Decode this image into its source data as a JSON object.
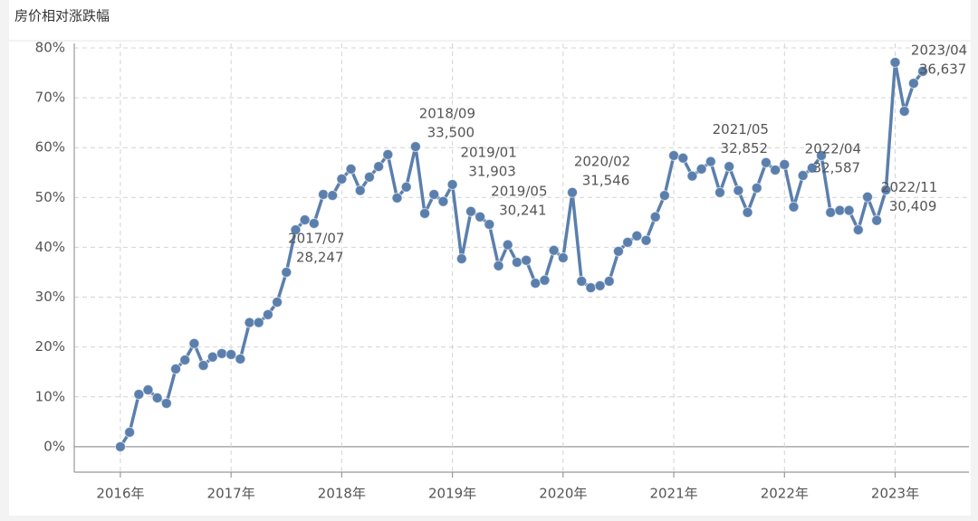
{
  "chart_data": {
    "type": "line",
    "title": "房价相对涨跌幅",
    "x": [
      "2016/01",
      "2016/02",
      "2016/03",
      "2016/04",
      "2016/05",
      "2016/06",
      "2016/07",
      "2016/08",
      "2016/09",
      "2016/10",
      "2016/11",
      "2016/12",
      "2017/01",
      "2017/02",
      "2017/03",
      "2017/04",
      "2017/05",
      "2017/06",
      "2017/07",
      "2017/08",
      "2017/09",
      "2017/10",
      "2017/11",
      "2017/12",
      "2018/01",
      "2018/02",
      "2018/03",
      "2018/04",
      "2018/05",
      "2018/06",
      "2018/07",
      "2018/08",
      "2018/09",
      "2018/10",
      "2018/11",
      "2018/12",
      "2019/01",
      "2019/02",
      "2019/03",
      "2019/04",
      "2019/05",
      "2019/06",
      "2019/07",
      "2019/08",
      "2019/09",
      "2019/10",
      "2019/11",
      "2019/12",
      "2020/01",
      "2020/02",
      "2020/03",
      "2020/04",
      "2020/05",
      "2020/06",
      "2020/07",
      "2020/08",
      "2020/09",
      "2020/10",
      "2020/11",
      "2020/12",
      "2021/01",
      "2021/02",
      "2021/03",
      "2021/04",
      "2021/05",
      "2021/06",
      "2021/07",
      "2021/08",
      "2021/09",
      "2021/10",
      "2021/11",
      "2021/12",
      "2022/01",
      "2022/02",
      "2022/03",
      "2022/04",
      "2022/05",
      "2022/06",
      "2022/07",
      "2022/08",
      "2022/09",
      "2022/10",
      "2022/11",
      "2022/12",
      "2023/01",
      "2023/02",
      "2023/03",
      "2023/04"
    ],
    "series": [
      {
        "name": "房价相对涨跌幅",
        "color": "#5b7fad",
        "values": [
          0,
          2.9,
          10.5,
          11.4,
          9.8,
          8.7,
          15.6,
          17.4,
          20.7,
          16.3,
          18.0,
          18.7,
          18.5,
          17.6,
          24.9,
          24.9,
          26.5,
          29.0,
          35.0,
          43.5,
          45.5,
          44.8,
          50.6,
          50.4,
          53.7,
          55.7,
          51.4,
          54.1,
          56.2,
          58.6,
          49.9,
          52.1,
          60.2,
          46.8,
          50.6,
          49.2,
          52.6,
          37.7,
          47.2,
          46.1,
          44.6,
          36.3,
          40.5,
          37.0,
          37.4,
          32.8,
          33.4,
          39.4,
          37.9,
          51.0,
          33.2,
          31.9,
          32.3,
          33.2,
          39.2,
          41.0,
          42.3,
          41.4,
          46.1,
          50.4,
          58.4,
          57.9,
          54.3,
          55.7,
          57.2,
          51.0,
          56.2,
          51.4,
          47.0,
          51.9,
          57.0,
          55.5,
          56.6,
          48.1,
          54.4,
          55.9,
          58.4,
          47.0,
          47.4,
          47.4,
          43.5,
          50.1,
          45.4,
          51.5,
          77.1,
          67.3,
          72.9,
          75.3
        ]
      }
    ],
    "xlim": [
      "2015/08",
      "2023/09"
    ],
    "xticks": [
      {
        "value": "2016/01",
        "label": "2016年"
      },
      {
        "value": "2017/01",
        "label": "2017年"
      },
      {
        "value": "2018/01",
        "label": "2018年"
      },
      {
        "value": "2019/01",
        "label": "2019年"
      },
      {
        "value": "2020/01",
        "label": "2020年"
      },
      {
        "value": "2021/01",
        "label": "2021年"
      },
      {
        "value": "2022/01",
        "label": "2022年"
      },
      {
        "value": "2023/01",
        "label": "2023年"
      }
    ],
    "ylim": [
      -5.1,
      80.9
    ],
    "yticks": [
      {
        "value": 0,
        "label": "0%"
      },
      {
        "value": 10,
        "label": "10%"
      },
      {
        "value": 20,
        "label": "20%"
      },
      {
        "value": 30,
        "label": "30%"
      },
      {
        "value": 40,
        "label": "40%"
      },
      {
        "value": 50,
        "label": "50%"
      },
      {
        "value": 60,
        "label": "60%"
      },
      {
        "value": 70,
        "label": "70%"
      },
      {
        "value": 80,
        "label": "80%"
      }
    ],
    "grid": true,
    "annotations": [
      [
        "2017/07",
        "28,247"
      ],
      [
        "2018/09",
        "33,500"
      ],
      [
        "2019/01",
        "31,903"
      ],
      [
        "2019/05",
        "30,241"
      ],
      [
        "2020/02",
        "31,546"
      ],
      [
        "2021/05",
        "32,852"
      ],
      [
        "2022/04",
        "32,587"
      ],
      [
        "2022/11",
        "30,409"
      ],
      [
        "2023/04",
        "36,637"
      ]
    ]
  }
}
